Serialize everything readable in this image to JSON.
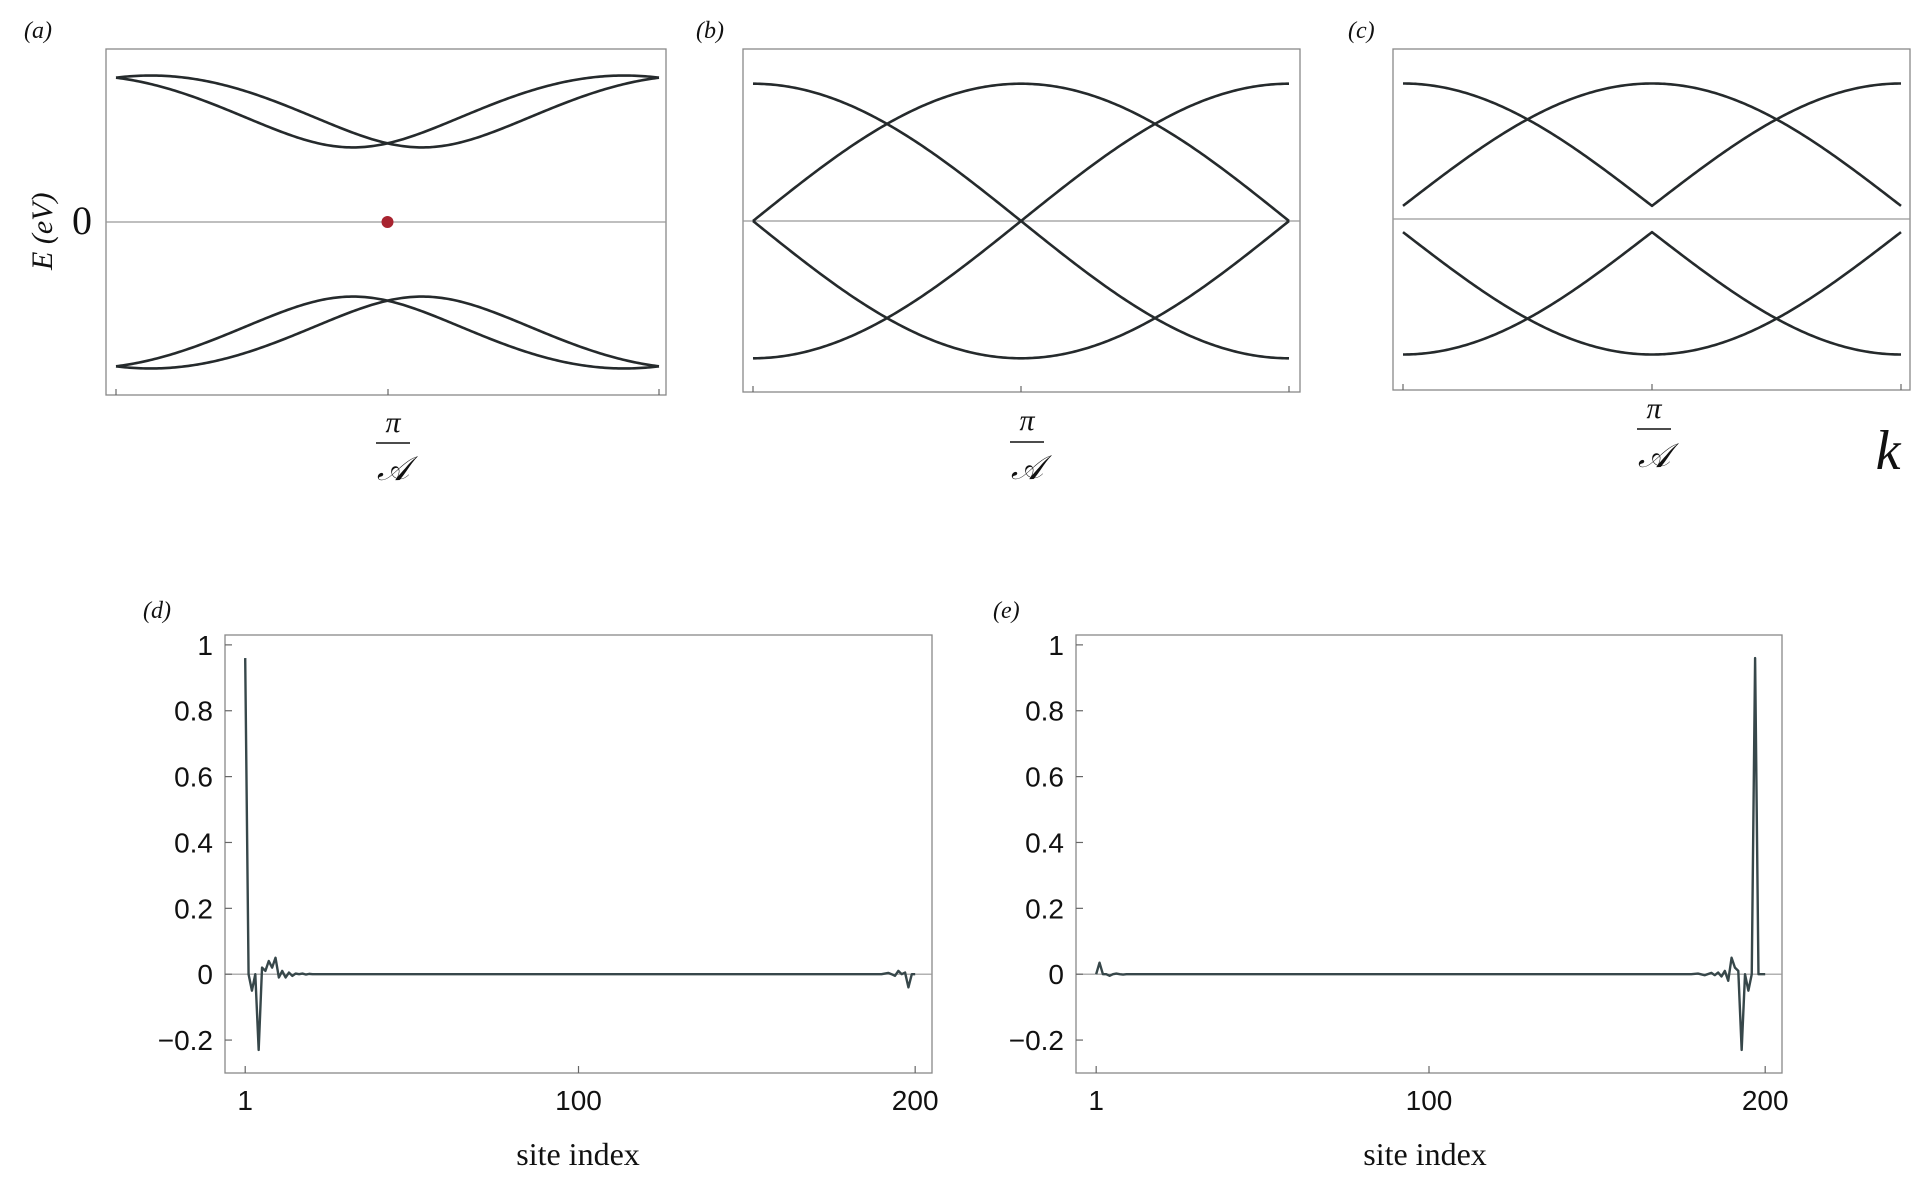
{
  "figure": {
    "ylabel_top": "E (eV)",
    "k_label": "k",
    "pi_tick_num": "π",
    "pi_tick_den": "𝒜"
  },
  "chart_data": [
    {
      "panel": "(a)",
      "type": "line",
      "xlabel": "",
      "ylabel": "E (eV)",
      "x_tick_labels": [
        "π/𝒜"
      ],
      "y_tick_labels": [
        "0"
      ],
      "k_range": [
        0,
        6.2832
      ],
      "series": [
        {
          "values_desc": "E = ±sqrt(1.7 + 1.0·cos(k ± 0.4))",
          "sign": 1,
          "shift": 0.4
        },
        {
          "sign": 1,
          "shift": -0.4
        },
        {
          "sign": -1,
          "shift": 0.4
        },
        {
          "sign": -1,
          "shift": -0.4
        }
      ],
      "marker": {
        "k": 3.1416,
        "E": 0,
        "color": "#a8232f"
      },
      "ylim": [
        -1.75,
        1.75
      ]
    },
    {
      "panel": "(b)",
      "type": "line",
      "xlabel": "",
      "ylabel": "",
      "x_tick_labels": [
        "π/𝒜"
      ],
      "series": [
        {
          "form": "E = +1.55·sin(k/2)"
        },
        {
          "form": "E = +1.55·cos(k/2)"
        },
        {
          "form": "E = -1.55·sin(k/2)"
        },
        {
          "form": "E = -1.55·cos(k/2)"
        }
      ],
      "ylim": [
        -1.75,
        1.75
      ]
    },
    {
      "panel": "(c)",
      "type": "line",
      "xlabel": "k",
      "ylabel": "",
      "x_tick_labels": [
        "π/𝒜"
      ],
      "series": [
        {
          "form": "E = +(0.15 + 1.4·sin(k/2))"
        },
        {
          "form": "E = +(0.15 + 1.4·cos(k/2))"
        },
        {
          "form": "E = -(0.15 + 1.4·sin(k/2))"
        },
        {
          "form": "E = -(0.15 + 1.4·cos(k/2))"
        }
      ],
      "ylim": [
        -1.75,
        1.75
      ]
    },
    {
      "panel": "(d)",
      "type": "line",
      "xlabel": "site index",
      "ylabel": "",
      "x_ticks": [
        1,
        100,
        200
      ],
      "y_ticks": [
        -0.2,
        0,
        0.2,
        0.4,
        0.6,
        0.8,
        1
      ],
      "xlim": [
        -5,
        205
      ],
      "ylim": [
        -0.3,
        1.03
      ],
      "x": [
        1,
        2,
        3,
        4,
        5,
        6,
        7,
        8,
        9,
        10,
        11,
        12,
        13,
        14,
        15,
        16,
        17,
        18,
        19,
        20,
        21,
        22,
        25,
        30,
        50,
        100,
        150,
        180,
        190,
        192,
        193,
        194,
        195,
        196,
        197,
        198,
        199,
        200
      ],
      "y": [
        0.96,
        0,
        -0.05,
        0,
        -0.23,
        0.02,
        0.01,
        0.04,
        0.02,
        0.05,
        -0.01,
        0.01,
        -0.01,
        0.005,
        -0.005,
        0.002,
        0,
        0.002,
        -0.001,
        0.001,
        0,
        0,
        0,
        0,
        0,
        0,
        0,
        0,
        0,
        0.004,
        0,
        -0.005,
        0.01,
        0,
        0.005,
        -0.04,
        0,
        0
      ]
    },
    {
      "panel": "(e)",
      "type": "line",
      "xlabel": "site index",
      "ylabel": "",
      "x_ticks": [
        1,
        100,
        200
      ],
      "y_ticks": [
        -0.2,
        0,
        0.2,
        0.4,
        0.6,
        0.8,
        1
      ],
      "xlim": [
        -5,
        205
      ],
      "ylim": [
        -0.3,
        1.03
      ],
      "x": [
        1,
        2,
        3,
        4,
        5,
        6,
        7,
        8,
        9,
        10,
        15,
        20,
        50,
        100,
        150,
        178,
        180,
        182,
        184,
        185,
        186,
        187,
        188,
        189,
        190,
        191,
        192,
        193,
        194,
        195,
        196,
        197,
        198,
        199,
        200
      ],
      "y": [
        0,
        0.035,
        0,
        0,
        -0.005,
        0,
        0.002,
        0,
        -0.001,
        0,
        0,
        0,
        0,
        0,
        0,
        0,
        0.002,
        -0.003,
        0.004,
        -0.003,
        0.005,
        -0.007,
        0.01,
        -0.02,
        0.05,
        0.02,
        0.01,
        -0.23,
        0,
        -0.05,
        0,
        0.96,
        0,
        0,
        0
      ]
    }
  ]
}
